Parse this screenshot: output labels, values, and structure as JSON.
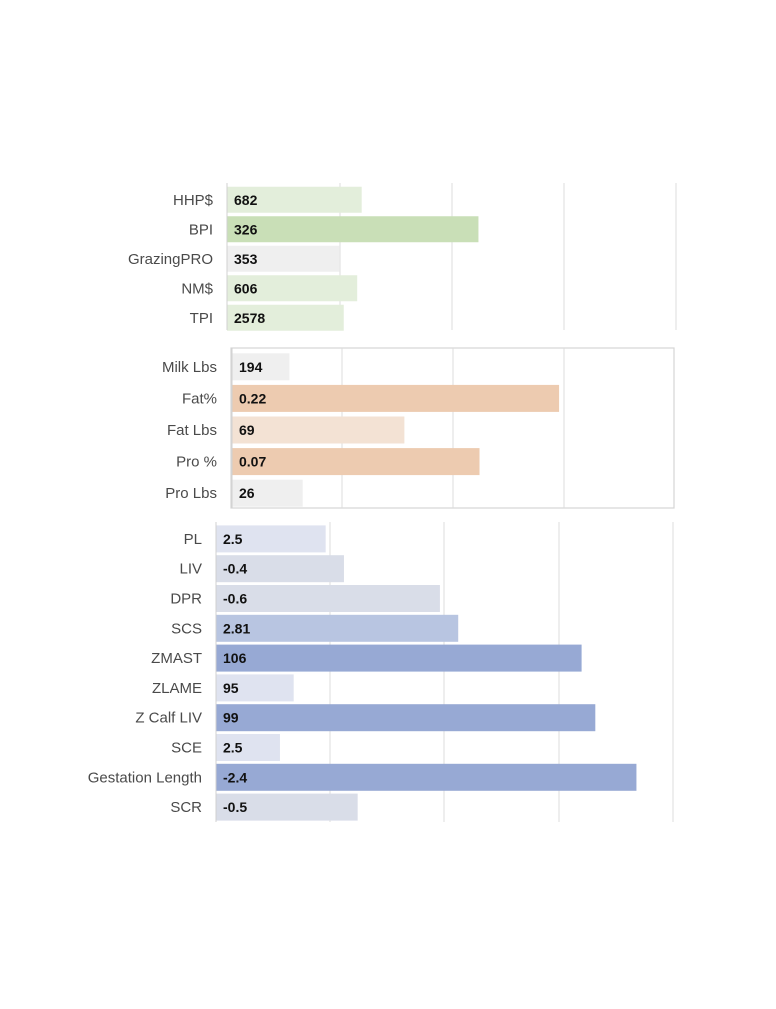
{
  "chart_data": [
    {
      "type": "bar",
      "orientation": "horizontal",
      "panel": "indexes",
      "border": false,
      "grid": true,
      "categories": [
        "HHP$",
        "BPI",
        "GrazingPRO",
        "NM$",
        "TPI"
      ],
      "values": [
        682,
        326,
        353,
        606,
        2578
      ],
      "value_labels": [
        "682",
        "326",
        "353",
        "606",
        "2578"
      ],
      "bar_fill_fraction": [
        0.3,
        0.56,
        0.25,
        0.29,
        0.26
      ],
      "colors": [
        "#e3eedb",
        "#c9dfb7",
        "#efefef",
        "#e3eedb",
        "#e3eedb"
      ]
    },
    {
      "type": "bar",
      "orientation": "horizontal",
      "panel": "production",
      "border": true,
      "grid": true,
      "categories": [
        "Milk Lbs",
        "Fat%",
        "Fat Lbs",
        "Pro %",
        "Pro Lbs"
      ],
      "values": [
        194,
        0.22,
        69,
        0.07,
        26
      ],
      "value_labels": [
        "194",
        "0.22",
        "69",
        "0.07",
        "26"
      ],
      "bar_fill_fraction": [
        0.13,
        0.74,
        0.39,
        0.56,
        0.16
      ],
      "colors": [
        "#efefef",
        "#edcbb0",
        "#f3e2d4",
        "#edcbb0",
        "#efefef"
      ]
    },
    {
      "type": "bar",
      "orientation": "horizontal",
      "panel": "health",
      "border": false,
      "grid": true,
      "categories": [
        "PL",
        "LIV",
        "DPR",
        "SCS",
        "ZMAST",
        "ZLAME",
        "Z Calf LIV",
        "SCE",
        "Gestation Length",
        "SCR"
      ],
      "values": [
        2.5,
        -0.4,
        -0.6,
        2.81,
        106,
        95,
        99,
        2.5,
        -2.4,
        -0.5
      ],
      "value_labels": [
        "2.5",
        "-0.4",
        "-0.6",
        "2.81",
        "106",
        "95",
        "99",
        "2.5",
        "-2.4",
        "-0.5"
      ],
      "bar_fill_fraction": [
        0.24,
        0.28,
        0.49,
        0.53,
        0.8,
        0.17,
        0.83,
        0.14,
        0.92,
        0.31
      ],
      "colors": [
        "#dfe3f0",
        "#d9dde8",
        "#d9dde8",
        "#b8c5e1",
        "#97a9d4",
        "#dfe3f0",
        "#97a9d4",
        "#dfe3f0",
        "#97a9d4",
        "#d9dde8"
      ]
    }
  ]
}
